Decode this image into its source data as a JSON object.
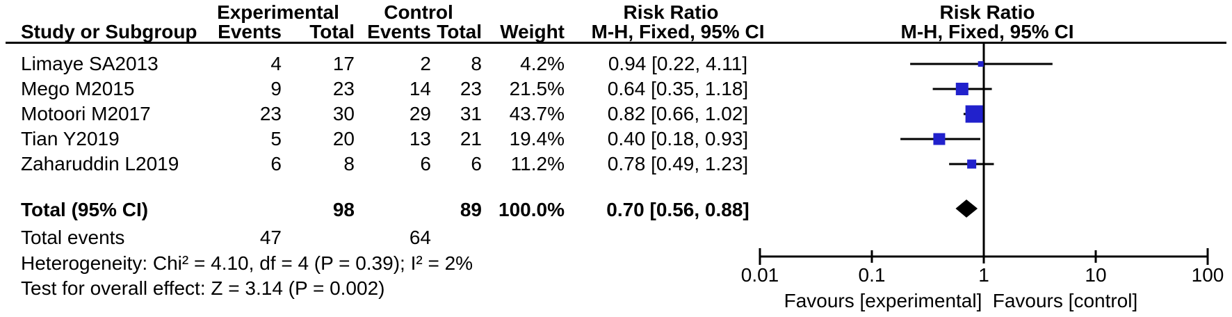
{
  "header": {
    "group_experimental": "Experimental",
    "group_control": "Control",
    "risk_ratio_left": "Risk Ratio",
    "risk_ratio_right": "Risk Ratio",
    "col_study": "Study or Subgroup",
    "col_events_exp": "Events",
    "col_total_exp": "Total",
    "col_events_ctl": "Events",
    "col_total_ctl": "Total",
    "col_weight": "Weight",
    "col_method_left": "M-H, Fixed, 95% CI",
    "col_method_right": "M-H, Fixed, 95% CI"
  },
  "chart_data": {
    "type": "forest",
    "x_scale": "log10",
    "xlim": [
      0.01,
      100
    ],
    "x_ticks": [
      "0.01",
      "0.1",
      "1",
      "10",
      "100"
    ],
    "x_tick_values": [
      0.01,
      0.1,
      1,
      10,
      100
    ],
    "null_line_value": 1,
    "marker_color": "#2121CC",
    "summary_color": "#000000",
    "favours_left": "Favours [experimental]",
    "favours_right": "Favours [control]",
    "studies": [
      {
        "name": "Limaye SA2013",
        "exp_events": "4",
        "exp_total": "17",
        "ctl_events": "2",
        "ctl_total": "8",
        "weight": "4.2%",
        "weight_value": 4.2,
        "rr_text": "0.94 [0.22, 4.11]",
        "rr": 0.94,
        "ci_low": 0.22,
        "ci_high": 4.11
      },
      {
        "name": "Mego M2015",
        "exp_events": "9",
        "exp_total": "23",
        "ctl_events": "14",
        "ctl_total": "23",
        "weight": "21.5%",
        "weight_value": 21.5,
        "rr_text": "0.64 [0.35, 1.18]",
        "rr": 0.64,
        "ci_low": 0.35,
        "ci_high": 1.18
      },
      {
        "name": "Motoori M2017",
        "exp_events": "23",
        "exp_total": "30",
        "ctl_events": "29",
        "ctl_total": "31",
        "weight": "43.7%",
        "weight_value": 43.7,
        "rr_text": "0.82 [0.66, 1.02]",
        "rr": 0.82,
        "ci_low": 0.66,
        "ci_high": 1.02
      },
      {
        "name": "Tian Y2019",
        "exp_events": "5",
        "exp_total": "20",
        "ctl_events": "13",
        "ctl_total": "21",
        "weight": "19.4%",
        "weight_value": 19.4,
        "rr_text": "0.40 [0.18, 0.93]",
        "rr": 0.4,
        "ci_low": 0.18,
        "ci_high": 0.93
      },
      {
        "name": "Zaharuddin L2019",
        "exp_events": "6",
        "exp_total": "8",
        "ctl_events": "6",
        "ctl_total": "6",
        "weight": "11.2%",
        "weight_value": 11.2,
        "rr_text": "0.78 [0.49, 1.23]",
        "rr": 0.78,
        "ci_low": 0.49,
        "ci_high": 1.23
      }
    ],
    "summary": {
      "label": "Total (95% CI)",
      "exp_total": "98",
      "ctl_total": "89",
      "weight": "100.0%",
      "rr_text": "0.70 [0.56, 0.88]",
      "rr": 0.7,
      "ci_low": 0.56,
      "ci_high": 0.88
    }
  },
  "total_events": {
    "label": "Total events",
    "exp": "47",
    "ctl": "64"
  },
  "footnotes": {
    "heterogeneity": "Heterogeneity: Chi² = 4.10, df = 4 (P = 0.39); I² = 2%",
    "overall_effect": "Test for overall effect: Z = 3.14 (P = 0.002)"
  }
}
